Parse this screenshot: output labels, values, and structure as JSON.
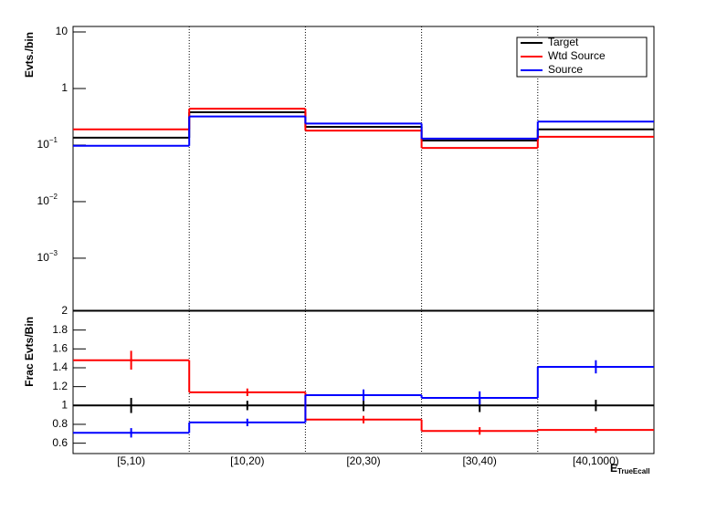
{
  "chart_data": [
    {
      "type": "step",
      "ylabel": "Evts./bin",
      "log_y": true,
      "categories": [
        "[5,10)",
        "[10,20)",
        "[20,30)",
        "[30,40)",
        "[40,1000)"
      ],
      "ylim": [
        0.00012,
        12.5
      ],
      "yticks": [
        {
          "value": 0.001,
          "label": "10",
          "sup": "−3"
        },
        {
          "value": 0.01,
          "label": "10",
          "sup": "−2"
        },
        {
          "value": 0.1,
          "label": "10",
          "sup": "−1"
        },
        1,
        10
      ],
      "legend": "top-right",
      "series": [
        {
          "name": "Target",
          "color": "#000000",
          "values": [
            0.135,
            0.38,
            0.21,
            0.12,
            0.19
          ]
        },
        {
          "name": "Wtd Source",
          "color": "#ff0000",
          "values": [
            0.19,
            0.44,
            0.18,
            0.089,
            0.14
          ]
        },
        {
          "name": "Source",
          "color": "#0000ff",
          "values": [
            0.097,
            0.32,
            0.24,
            0.13,
            0.26
          ]
        }
      ]
    },
    {
      "type": "step",
      "ylabel": "Frac Evts/Bin",
      "xlabel": "E",
      "xlabel_sub": "TrueEcall",
      "categories": [
        "[5,10)",
        "[10,20)",
        "[20,30)",
        "[30,40)",
        "[40,1000)"
      ],
      "ylim": [
        0.49,
        2
      ],
      "yticks": [
        0.6,
        0.8,
        1,
        1.2,
        1.4,
        1.6,
        1.8,
        2
      ],
      "series": [
        {
          "color": "#000000",
          "values": [
            1,
            1,
            1,
            1,
            1
          ],
          "errors": [
            0.08,
            0.05,
            0.06,
            0.07,
            0.06
          ]
        },
        {
          "color": "#ff0000",
          "values": [
            1.48,
            1.14,
            0.85,
            0.73,
            0.74
          ],
          "errors": [
            0.1,
            0.04,
            0.04,
            0.04,
            0.03
          ]
        },
        {
          "color": "#0000ff",
          "values": [
            0.71,
            0.82,
            1.11,
            1.08,
            1.41
          ],
          "errors": [
            0.05,
            0.04,
            0.06,
            0.07,
            0.07
          ]
        }
      ]
    }
  ]
}
